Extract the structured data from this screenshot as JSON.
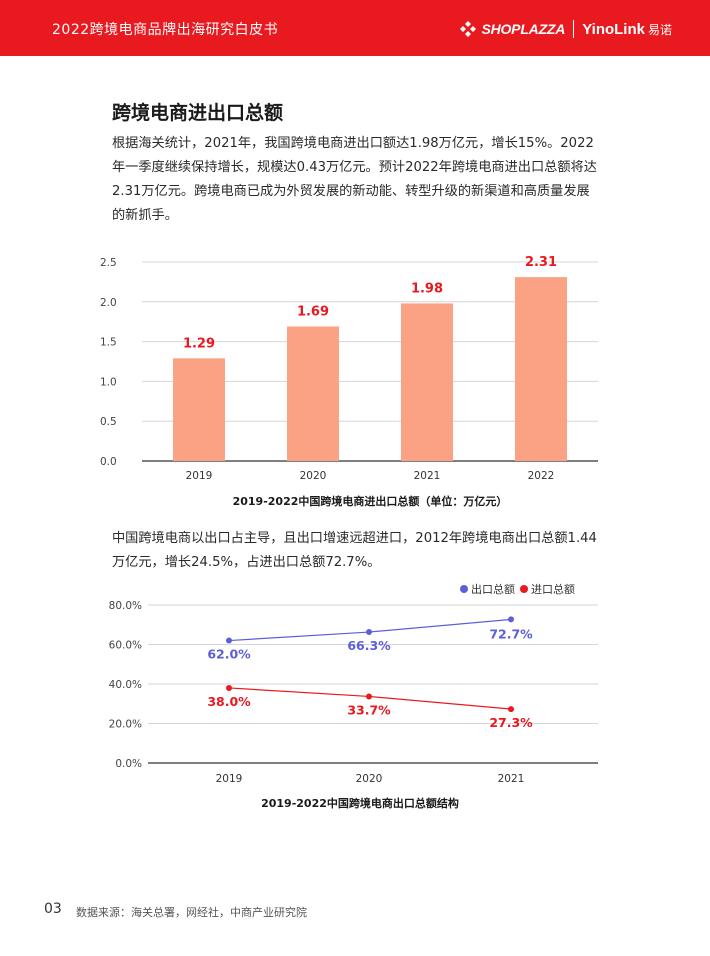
{
  "header": {
    "title": "2022跨境电商品牌出海研究白皮书",
    "brand1": "SHOPLAZZA",
    "brand2": "YinoLink",
    "brand2_cn": "易诺",
    "color": "#e8191f"
  },
  "section": {
    "title": "跨境电商进出口总额",
    "para1": "根据海关统计，2021年，我国跨境电商进出口额达1.98万亿元，增长15%。2022年一季度继续保持增长，规模达0.43万亿元。预计2022年跨境电商进出口总额将达2.31万亿元。跨境电商已成为外贸发展的新动能、转型升级的新渠道和高质量发展的新抓手。",
    "para2": "中国跨境电商以出口占主导，且出口增速远超进口，2012年跨境电商出口总额1.44万亿元，增长24.5%，占进出口总额72.7%。"
  },
  "chart_data": [
    {
      "type": "bar",
      "title": "2019-2022中国跨境电商进出口总额（单位：万亿元）",
      "categories": [
        "2019",
        "2020",
        "2021",
        "2022"
      ],
      "values": [
        1.29,
        1.69,
        1.98,
        2.31
      ],
      "data_labels": [
        "1.29",
        "1.69",
        "1.98",
        "2.31"
      ],
      "ylim": [
        0,
        2.5
      ],
      "yticks": [
        "0.0",
        "0.5",
        "1.0",
        "1.5",
        "2.0",
        "2.5"
      ],
      "grid": true,
      "bar_color": "#fca284",
      "label_color": "#e8191f"
    },
    {
      "type": "line",
      "title": "2019-2022中国跨境电商出口总额结构",
      "categories": [
        "2019",
        "2020",
        "2021"
      ],
      "ylim": [
        0,
        80
      ],
      "yticks": [
        "0.0%",
        "20.0%",
        "40.0%",
        "60.0%",
        "80.0%"
      ],
      "grid": true,
      "legend_position": "top-right",
      "series": [
        {
          "name": "出口总额",
          "values": [
            62.0,
            66.3,
            72.7
          ],
          "labels": [
            "62.0%",
            "66.3%",
            "72.7%"
          ],
          "color": "#5b5fd8"
        },
        {
          "name": "进口总额",
          "values": [
            38.0,
            33.7,
            27.3
          ],
          "labels": [
            "38.0%",
            "33.7%",
            "27.3%"
          ],
          "color": "#e8191f"
        }
      ]
    }
  ],
  "footer": {
    "page": "03",
    "source": "数据来源：海关总署，网经社，中商产业研究院"
  }
}
